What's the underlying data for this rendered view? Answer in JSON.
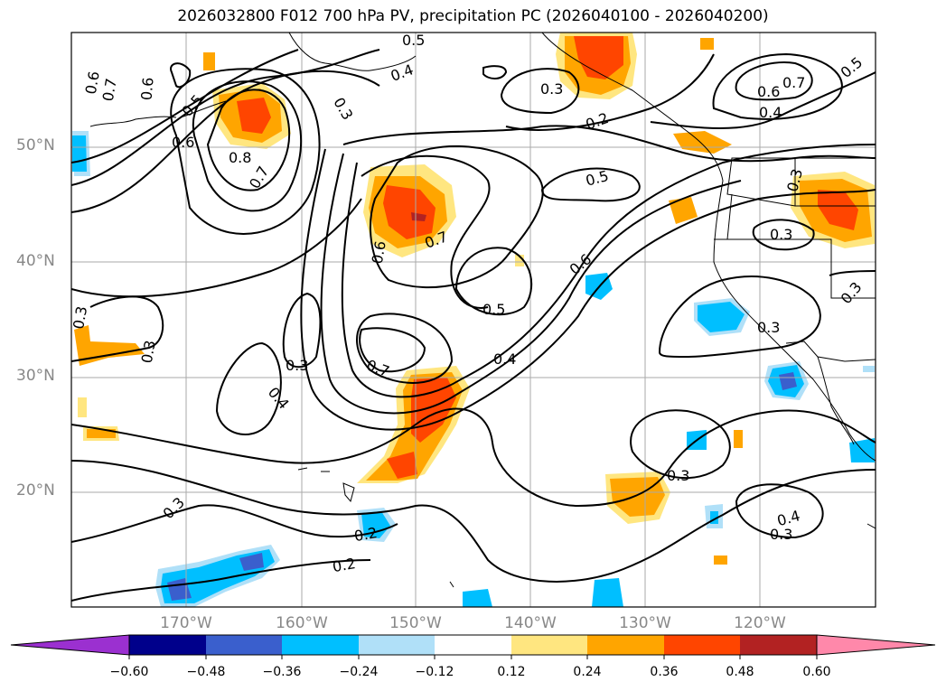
{
  "title": "2026032800 F012 700 hPa PV, precipitation PC (2026040100 - 2026040200)",
  "lon_labels": [
    "170°W",
    "160°W",
    "150°W",
    "140°W",
    "130°W",
    "120°W"
  ],
  "lat_labels": [
    "50°N",
    "40°N",
    "30°N",
    "20°N"
  ],
  "colorbar": {
    "ticks": [
      "−0.60",
      "−0.48",
      "−0.36",
      "−0.24",
      "−0.12",
      "0.12",
      "0.24",
      "0.36",
      "0.48",
      "0.60"
    ],
    "colors": [
      "#9b30d0",
      "#00008b",
      "#3a5fcd",
      "#00bfff",
      "#b0e0f8",
      "#ffffff",
      "#ffe680",
      "#ffa500",
      "#ff4500",
      "#b22222",
      "#ff88aa"
    ]
  },
  "contour_labels": [
    "0.5",
    "0.4",
    "0.3",
    "0.3",
    "0.6",
    "0.7",
    "0.5",
    "0.6",
    "0.4",
    "0.2",
    "0.5",
    "0.6",
    "0.8",
    "0.7",
    "0.6",
    "0.7",
    "0.6",
    "0.7",
    "0.5",
    "0.5",
    "0.6",
    "0.4",
    "0.3",
    "0.3",
    "0.3",
    "0.3",
    "0.4",
    "0.7",
    "0.3",
    "0.3",
    "0.4",
    "0.3",
    "0.2",
    "0.2",
    "0.3",
    "0.3",
    "0.3"
  ]
}
